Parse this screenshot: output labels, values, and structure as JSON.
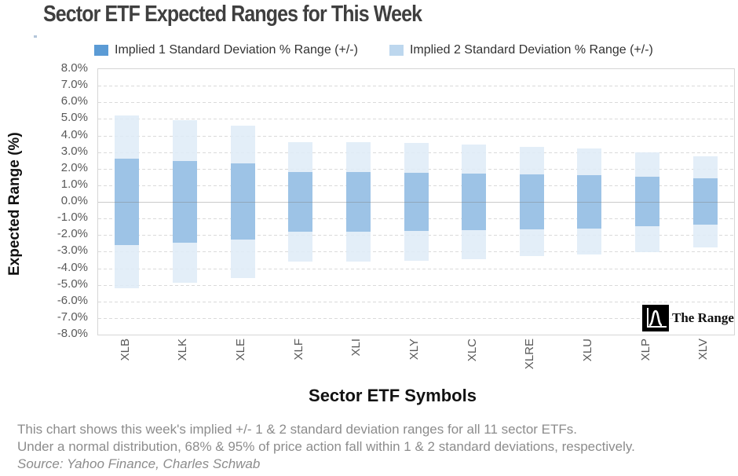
{
  "chart_data": {
    "type": "bar",
    "title": "Sector ETF Expected Ranges for This Week",
    "xlabel": "Sector ETF Symbols",
    "ylabel": "Expected Range (%)",
    "ylim": [
      -8,
      8
    ],
    "ytick_step": 1.0,
    "ytick_labels": [
      "8.0%",
      "7.0%",
      "6.0%",
      "5.0%",
      "4.0%",
      "3.0%",
      "2.0%",
      "1.0%",
      "0.0%",
      "-1.0%",
      "-2.0%",
      "-3.0%",
      "-4.0%",
      "-5.0%",
      "-6.0%",
      "-7.0%",
      "-8.0%"
    ],
    "grid": "horizontal dashed gridlines with solid zero line",
    "legend_position": "top",
    "bars_symmetric_about_zero": true,
    "categories": [
      "XLB",
      "XLK",
      "XLE",
      "XLF",
      "XLI",
      "XLY",
      "XLC",
      "XLRE",
      "XLU",
      "XLP",
      "XLV"
    ],
    "series": [
      {
        "name": "Implied 1 Standard Deviation % Range (+/-)",
        "legend_color": "#5B9BD5",
        "bar_color": "#9DC3E6",
        "values": [
          2.6,
          2.45,
          2.3,
          1.8,
          1.8,
          1.75,
          1.7,
          1.65,
          1.6,
          1.5,
          1.4
        ]
      },
      {
        "name": "Implied 2 Standard Deviation % Range (+/-)",
        "legend_color": "#BDD7EE",
        "bar_color": "#DEEBF7",
        "values": [
          5.2,
          4.9,
          4.6,
          3.6,
          3.6,
          3.55,
          3.45,
          3.3,
          3.2,
          3.0,
          2.75
        ]
      }
    ]
  },
  "watermark": {
    "label": "The Range",
    "icon": "bell-curve-logo",
    "bg_color": "#000000"
  },
  "footer": {
    "line1": "This chart shows this week's implied +/- 1 & 2 standard deviation ranges for all 11 sector ETFs.",
    "line2": "Under a normal distribution, 68% & 95% of price action fall within 1 & 2 standard deviations, respectively.",
    "line3": "Source: Yahoo Finance, Charles Schwab"
  }
}
